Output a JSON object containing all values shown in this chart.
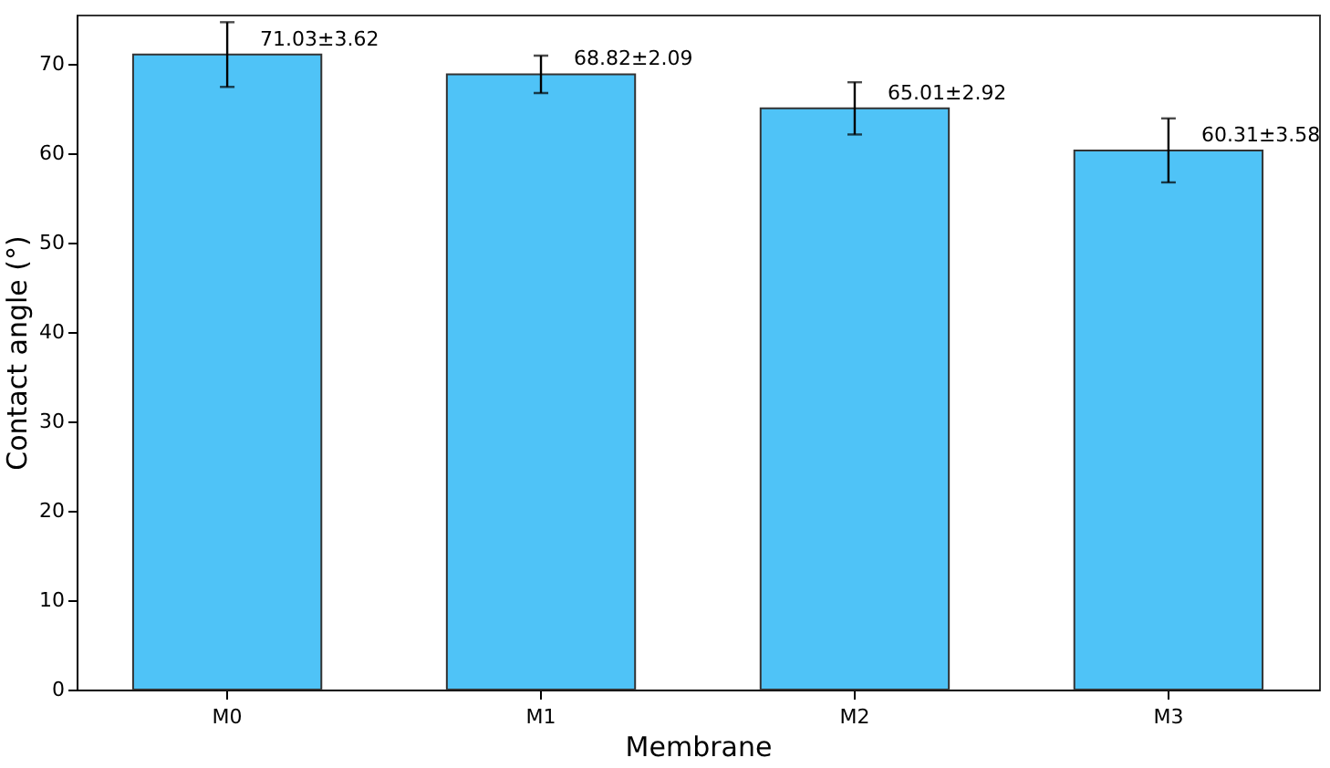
{
  "chart_data": {
    "type": "bar",
    "xlabel": "Membrane",
    "ylabel": "Contact angle (°)",
    "categories": [
      "M0",
      "M1",
      "M2",
      "M3"
    ],
    "values": [
      71.03,
      68.82,
      65.01,
      60.31
    ],
    "errors": [
      3.62,
      2.09,
      2.92,
      3.58
    ],
    "value_labels": [
      "71.03±3.62",
      "68.82±2.09",
      "65.01±2.92",
      "60.31±3.58"
    ],
    "color": "#4fc3f7",
    "ylim": [
      0,
      75.5
    ],
    "yticks": [
      0,
      10,
      20,
      30,
      40,
      50,
      60,
      70
    ],
    "grid": false
  }
}
